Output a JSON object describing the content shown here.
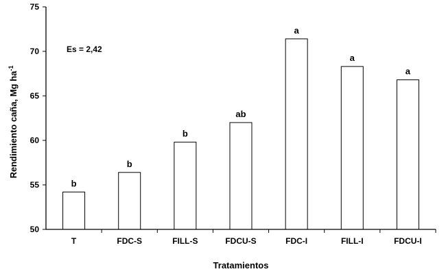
{
  "chart_data": {
    "type": "bar",
    "categories": [
      "T",
      "FDC-S",
      "FILL-S",
      "FDCU-S",
      "FDC-I",
      "FILL-I",
      "FDCU-I"
    ],
    "values": [
      54.2,
      56.4,
      59.8,
      62.0,
      71.4,
      68.3,
      66.8
    ],
    "significance_letters": [
      "b",
      "b",
      "b",
      "ab",
      "a",
      "a",
      "a"
    ],
    "annotation": "Es = 2,42",
    "xlabel": "Tratamientos",
    "ylabel": "Rendimiento caña, Mg ha",
    "ylabel_superscript": "-1",
    "ylim": [
      50,
      75
    ],
    "yticks": [
      50,
      55,
      60,
      65,
      70,
      75
    ],
    "grid": false,
    "legend": "none"
  }
}
